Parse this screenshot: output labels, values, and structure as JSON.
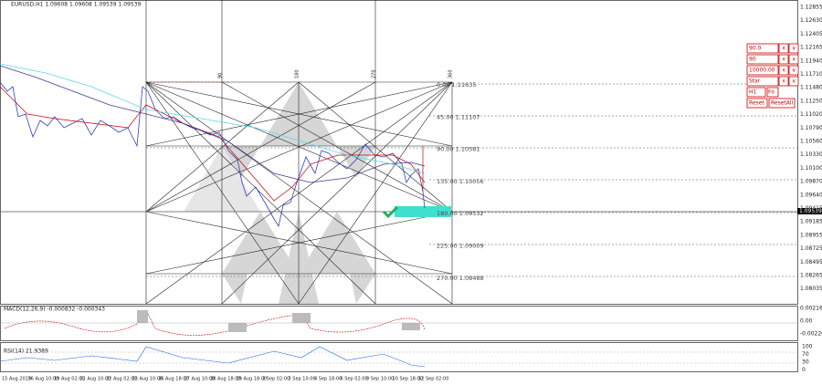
{
  "header": {
    "title": "EURUSD,H1  1.09608 1.09608 1.09539 1.09539"
  },
  "price_axis": [
    "1.12855",
    "1.12630",
    "1.12405",
    "1.12165",
    "1.11940",
    "1.11710",
    "1.11480",
    "1.11250",
    "1.11020",
    "1.10790",
    "1.10560",
    "1.10330",
    "1.10100",
    "1.09870",
    "1.09640",
    "1.09415",
    "1.09185",
    "1.08955",
    "1.08725",
    "1.08495",
    "1.08265",
    "1.08035"
  ],
  "current_price": "1.09539",
  "levels": [
    "0.00 1.11635",
    "45.00 1.11107",
    "90.00 1.10581",
    "135.00 1.10056",
    "180.00 1.09532",
    "225.00 1.09009",
    "270.00 1.08488"
  ],
  "vertical_labels": [
    "90",
    "180",
    "270",
    "360"
  ],
  "macd": {
    "label": "MACD(12,26,9) -0.000832 -0.000343",
    "axis": [
      "0.002164",
      "0.00",
      "-0.002207"
    ]
  },
  "rsi": {
    "label": "RSI(14) 21.9389",
    "axis": [
      "100",
      "70",
      "30",
      "0"
    ]
  },
  "time_axis": [
    "15 Aug 2019",
    "16 Aug 10:00",
    "19 Aug 02:00",
    "21 Aug 10:00",
    "22 Aug 02:00",
    "23 Aug 10:00",
    "26 Aug 18:00",
    "27 Aug 10:00",
    "28 Aug 18:00",
    "29 Aug 18:00",
    "2 Sep 02:00",
    "3 Sep 10:00",
    "4 Sep 18:00",
    "6 Sep 02:00",
    "9 Sep 10:00",
    "10 Sep 18:00",
    "12 Sep 02:00"
  ],
  "panel": {
    "inputs": [
      "90.0",
      "90",
      "10000.00",
      "Star",
      "H1"
    ],
    "extra": "Fo",
    "buttons": [
      "Reset",
      "ResetAll"
    ],
    "up": "∧",
    "down": "∨"
  }
}
